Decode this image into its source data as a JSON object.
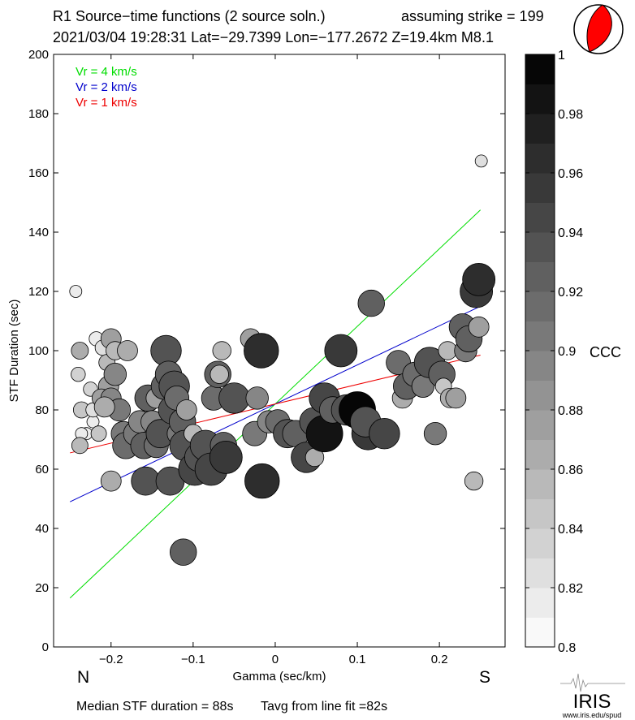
{
  "header": {
    "line1_left": "R1 Source−time functions (2 source soln.)",
    "line1_right": "assuming strike = 199",
    "line2": "2021/03/04 19:28:31  Lat=−29.7399 Lon=−177.2672  Z=19.4km  M8.1"
  },
  "directions": {
    "left": "N",
    "right": "S"
  },
  "footer": {
    "median": "Median STF duration = 88s",
    "tavg": "Tavg from line fit =82s"
  },
  "logo": {
    "name": "IRIS",
    "url": "www.iris.edu/spud"
  },
  "colors": {
    "beachball_fill": "#ff0000",
    "vr4": "#00dd00",
    "vr2": "#0000cc",
    "vr1": "#ee0000"
  },
  "chart_data": {
    "type": "scatter",
    "xlabel": "Gamma (sec/km)",
    "ylabel": "STF Duration (sec)",
    "xlim": [
      -0.27,
      0.28
    ],
    "ylim": [
      0,
      200
    ],
    "xticks": [
      -0.2,
      -0.1,
      0,
      0.1,
      0.2
    ],
    "xtick_labels": [
      "−0.2",
      "−0.1",
      "0",
      "0.1",
      "0.2"
    ],
    "yticks": [
      0,
      20,
      40,
      60,
      80,
      100,
      120,
      140,
      160,
      180,
      200
    ],
    "yticklabels": [
      "0",
      "20",
      "40",
      "60",
      "80",
      "100",
      "120",
      "140",
      "160",
      "180",
      "200"
    ],
    "grid": false,
    "legend_position": "top-left",
    "legend": [
      {
        "label": "Vr = 4 km/s",
        "color": "#00dd00"
      },
      {
        "label": "Vr = 2 km/s",
        "color": "#0000cc"
      },
      {
        "label": "Vr = 1 km/s",
        "color": "#ee0000"
      }
    ],
    "fit_lines": [
      {
        "label": "Vr = 4 km/s",
        "color": "#00dd00",
        "x": [
          -0.25,
          0.25
        ],
        "y": [
          16.5,
          147.5
        ]
      },
      {
        "label": "Vr = 2 km/s",
        "color": "#0000cc",
        "x": [
          -0.25,
          0.25
        ],
        "y": [
          49,
          115
        ]
      },
      {
        "label": "Vr = 1 km/s",
        "color": "#ee0000",
        "x": [
          -0.25,
          0.25
        ],
        "y": [
          65.5,
          98.5
        ]
      }
    ],
    "colorbar": {
      "label": "CCC",
      "min": 0.8,
      "max": 1.0,
      "ticks": [
        0.8,
        0.82,
        0.84,
        0.86,
        0.88,
        0.9,
        0.92,
        0.94,
        0.96,
        0.98,
        1
      ],
      "tick_labels": [
        "0.8",
        "0.82",
        "0.84",
        "0.86",
        "0.88",
        "0.9",
        "0.92",
        "0.94",
        "0.96",
        "0.98",
        "1"
      ],
      "levels": 20
    },
    "points": [
      {
        "x": -0.243,
        "y": 120,
        "ccc": 0.81,
        "s": 0.1
      },
      {
        "x": 0.251,
        "y": 164,
        "ccc": 0.83,
        "s": 0.1
      },
      {
        "x": -0.23,
        "y": 72,
        "ccc": 0.81,
        "s": 0.1
      },
      {
        "x": -0.222,
        "y": 76,
        "ccc": 0.81,
        "s": 0.1
      },
      {
        "x": -0.236,
        "y": 72,
        "ccc": 0.82,
        "s": 0.1
      },
      {
        "x": -0.218,
        "y": 104,
        "ccc": 0.82,
        "s": 0.15
      },
      {
        "x": -0.24,
        "y": 92,
        "ccc": 0.84,
        "s": 0.15
      },
      {
        "x": -0.238,
        "y": 100,
        "ccc": 0.87,
        "s": 0.22
      },
      {
        "x": -0.236,
        "y": 80,
        "ccc": 0.85,
        "s": 0.2
      },
      {
        "x": -0.238,
        "y": 68,
        "ccc": 0.86,
        "s": 0.2
      },
      {
        "x": -0.225,
        "y": 87,
        "ccc": 0.84,
        "s": 0.15
      },
      {
        "x": -0.222,
        "y": 80,
        "ccc": 0.83,
        "s": 0.15
      },
      {
        "x": -0.215,
        "y": 72,
        "ccc": 0.85,
        "s": 0.18
      },
      {
        "x": -0.21,
        "y": 101,
        "ccc": 0.83,
        "s": 0.18
      },
      {
        "x": -0.205,
        "y": 96,
        "ccc": 0.86,
        "s": 0.2
      },
      {
        "x": -0.2,
        "y": 104,
        "ccc": 0.88,
        "s": 0.3
      },
      {
        "x": -0.195,
        "y": 100,
        "ccc": 0.86,
        "s": 0.25
      },
      {
        "x": -0.203,
        "y": 88,
        "ccc": 0.88,
        "s": 0.3
      },
      {
        "x": -0.212,
        "y": 84,
        "ccc": 0.88,
        "s": 0.25
      },
      {
        "x": -0.2,
        "y": 84,
        "ccc": 0.89,
        "s": 0.3
      },
      {
        "x": -0.195,
        "y": 92,
        "ccc": 0.89,
        "s": 0.35
      },
      {
        "x": -0.19,
        "y": 80,
        "ccc": 0.9,
        "s": 0.35
      },
      {
        "x": -0.18,
        "y": 100,
        "ccc": 0.87,
        "s": 0.3
      },
      {
        "x": -0.208,
        "y": 81,
        "ccc": 0.87,
        "s": 0.3
      },
      {
        "x": -0.2,
        "y": 56,
        "ccc": 0.87,
        "s": 0.3
      },
      {
        "x": -0.185,
        "y": 72,
        "ccc": 0.9,
        "s": 0.4
      },
      {
        "x": -0.182,
        "y": 68,
        "ccc": 0.91,
        "s": 0.45
      },
      {
        "x": -0.17,
        "y": 72,
        "ccc": 0.9,
        "s": 0.4
      },
      {
        "x": -0.165,
        "y": 76,
        "ccc": 0.89,
        "s": 0.35
      },
      {
        "x": -0.16,
        "y": 68,
        "ccc": 0.92,
        "s": 0.45
      },
      {
        "x": -0.158,
        "y": 56,
        "ccc": 0.93,
        "s": 0.5
      },
      {
        "x": -0.155,
        "y": 84,
        "ccc": 0.92,
        "s": 0.45
      },
      {
        "x": -0.15,
        "y": 76,
        "ccc": 0.89,
        "s": 0.35
      },
      {
        "x": -0.145,
        "y": 68,
        "ccc": 0.91,
        "s": 0.4
      },
      {
        "x": -0.145,
        "y": 84,
        "ccc": 0.88,
        "s": 0.3
      },
      {
        "x": -0.14,
        "y": 72,
        "ccc": 0.93,
        "s": 0.5
      },
      {
        "x": -0.135,
        "y": 88,
        "ccc": 0.92,
        "s": 0.45
      },
      {
        "x": -0.133,
        "y": 100,
        "ccc": 0.94,
        "s": 0.55
      },
      {
        "x": -0.13,
        "y": 92,
        "ccc": 0.92,
        "s": 0.45
      },
      {
        "x": -0.128,
        "y": 56,
        "ccc": 0.93,
        "s": 0.5
      },
      {
        "x": -0.125,
        "y": 80,
        "ccc": 0.93,
        "s": 0.5
      },
      {
        "x": -0.123,
        "y": 88,
        "ccc": 0.94,
        "s": 0.55
      },
      {
        "x": -0.12,
        "y": 84,
        "ccc": 0.91,
        "s": 0.4
      },
      {
        "x": -0.118,
        "y": 72,
        "ccc": 0.9,
        "s": 0.35
      },
      {
        "x": -0.113,
        "y": 76,
        "ccc": 0.92,
        "s": 0.45
      },
      {
        "x": -0.11,
        "y": 68,
        "ccc": 0.94,
        "s": 0.55
      },
      {
        "x": -0.108,
        "y": 80,
        "ccc": 0.88,
        "s": 0.3
      },
      {
        "x": -0.112,
        "y": 32,
        "ccc": 0.92,
        "s": 0.45
      },
      {
        "x": -0.1,
        "y": 72,
        "ccc": 0.86,
        "s": 0.25
      },
      {
        "x": -0.098,
        "y": 60,
        "ccc": 0.95,
        "s": 0.6
      },
      {
        "x": -0.093,
        "y": 64,
        "ccc": 0.93,
        "s": 0.5
      },
      {
        "x": -0.085,
        "y": 68,
        "ccc": 0.94,
        "s": 0.55
      },
      {
        "x": -0.078,
        "y": 60,
        "ccc": 0.95,
        "s": 0.6
      },
      {
        "x": -0.075,
        "y": 84,
        "ccc": 0.91,
        "s": 0.4
      },
      {
        "x": -0.07,
        "y": 92,
        "ccc": 0.92,
        "s": 0.45
      },
      {
        "x": -0.068,
        "y": 92,
        "ccc": 0.86,
        "s": 0.25
      },
      {
        "x": -0.065,
        "y": 100,
        "ccc": 0.86,
        "s": 0.25
      },
      {
        "x": -0.063,
        "y": 68,
        "ccc": 0.92,
        "s": 0.45
      },
      {
        "x": -0.06,
        "y": 64,
        "ccc": 0.96,
        "s": 0.6
      },
      {
        "x": -0.05,
        "y": 84,
        "ccc": 0.94,
        "s": 0.55
      },
      {
        "x": -0.03,
        "y": 104,
        "ccc": 0.88,
        "s": 0.3
      },
      {
        "x": -0.025,
        "y": 72,
        "ccc": 0.9,
        "s": 0.4
      },
      {
        "x": -0.022,
        "y": 84,
        "ccc": 0.89,
        "s": 0.35
      },
      {
        "x": -0.017,
        "y": 100,
        "ccc": 0.97,
        "s": 0.65
      },
      {
        "x": -0.016,
        "y": 56,
        "ccc": 0.97,
        "s": 0.65
      },
      {
        "x": -0.008,
        "y": 76,
        "ccc": 0.89,
        "s": 0.35
      },
      {
        "x": 0.003,
        "y": 76,
        "ccc": 0.91,
        "s": 0.4
      },
      {
        "x": 0.015,
        "y": 72,
        "ccc": 0.93,
        "s": 0.5
      },
      {
        "x": 0.025,
        "y": 72,
        "ccc": 0.92,
        "s": 0.45
      },
      {
        "x": 0.038,
        "y": 64,
        "ccc": 0.95,
        "s": 0.55
      },
      {
        "x": 0.048,
        "y": 64,
        "ccc": 0.87,
        "s": 0.25
      },
      {
        "x": 0.047,
        "y": 76,
        "ccc": 0.93,
        "s": 0.5
      },
      {
        "x": 0.06,
        "y": 72,
        "ccc": 0.98,
        "s": 0.7
      },
      {
        "x": 0.06,
        "y": 84,
        "ccc": 0.95,
        "s": 0.55
      },
      {
        "x": 0.07,
        "y": 80,
        "ccc": 0.92,
        "s": 0.45
      },
      {
        "x": 0.08,
        "y": 100,
        "ccc": 0.96,
        "s": 0.6
      },
      {
        "x": 0.087,
        "y": 80,
        "ccc": 0.94,
        "s": 0.55
      },
      {
        "x": 0.1,
        "y": 80,
        "ccc": 0.99,
        "s": 0.7
      },
      {
        "x": 0.113,
        "y": 72,
        "ccc": 0.96,
        "s": 0.6
      },
      {
        "x": 0.11,
        "y": 76,
        "ccc": 0.94,
        "s": 0.55
      },
      {
        "x": 0.117,
        "y": 116,
        "ccc": 0.92,
        "s": 0.45
      },
      {
        "x": 0.133,
        "y": 72,
        "ccc": 0.95,
        "s": 0.55
      },
      {
        "x": 0.15,
        "y": 96,
        "ccc": 0.91,
        "s": 0.4
      },
      {
        "x": 0.155,
        "y": 84,
        "ccc": 0.87,
        "s": 0.3
      },
      {
        "x": 0.16,
        "y": 88,
        "ccc": 0.92,
        "s": 0.45
      },
      {
        "x": 0.17,
        "y": 92,
        "ccc": 0.91,
        "s": 0.4
      },
      {
        "x": 0.18,
        "y": 88,
        "ccc": 0.9,
        "s": 0.35
      },
      {
        "x": 0.188,
        "y": 96,
        "ccc": 0.94,
        "s": 0.55
      },
      {
        "x": 0.195,
        "y": 72,
        "ccc": 0.9,
        "s": 0.35
      },
      {
        "x": 0.203,
        "y": 92,
        "ccc": 0.92,
        "s": 0.45
      },
      {
        "x": 0.205,
        "y": 88,
        "ccc": 0.85,
        "s": 0.2
      },
      {
        "x": 0.21,
        "y": 100,
        "ccc": 0.86,
        "s": 0.25
      },
      {
        "x": 0.213,
        "y": 84,
        "ccc": 0.87,
        "s": 0.28
      },
      {
        "x": 0.22,
        "y": 84,
        "ccc": 0.88,
        "s": 0.3
      },
      {
        "x": 0.228,
        "y": 108,
        "ccc": 0.92,
        "s": 0.45
      },
      {
        "x": 0.232,
        "y": 100,
        "ccc": 0.9,
        "s": 0.35
      },
      {
        "x": 0.236,
        "y": 104,
        "ccc": 0.92,
        "s": 0.45
      },
      {
        "x": 0.242,
        "y": 56,
        "ccc": 0.86,
        "s": 0.25
      },
      {
        "x": 0.248,
        "y": 108,
        "ccc": 0.88,
        "s": 0.3
      },
      {
        "x": 0.245,
        "y": 120,
        "ccc": 0.96,
        "s": 0.6
      },
      {
        "x": 0.248,
        "y": 124,
        "ccc": 0.97,
        "s": 0.6
      }
    ]
  }
}
